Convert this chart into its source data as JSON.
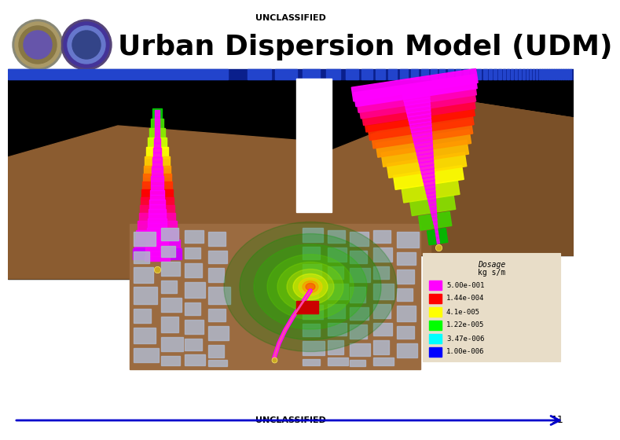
{
  "title": "Urban Dispersion Model (UDM)",
  "unclassified_text": "UNCLASSIFIED",
  "page_number": "11",
  "background_color": "#ffffff",
  "header_bar_dark": "#0a1f8c",
  "header_bar_mid": "#2244cc",
  "title_fontsize": 26,
  "unclassified_fontsize": 8,
  "colorbar_title_line1": "Dosage",
  "colorbar_title_line2": "kg s/m",
  "colorbar_labels": [
    "5.00e-001",
    "1.44e-004",
    "4.1e-005",
    "1.22e-005",
    "3.47e-006",
    "1.00e-006"
  ],
  "colorbar_colors": [
    "#ff00ff",
    "#ff0000",
    "#ffff00",
    "#00ff00",
    "#00ffff",
    "#0000ff"
  ],
  "colorbar_bg": "#e8ddc8",
  "arrow_color": "#0000cc",
  "terrain_color": "#8B5C30",
  "black": "#000000",
  "white": "#ffffff",
  "logo1_outer": "#666655",
  "logo1_inner": "#997744",
  "logo2_outer": "#443366",
  "logo2_inner": "#334488"
}
